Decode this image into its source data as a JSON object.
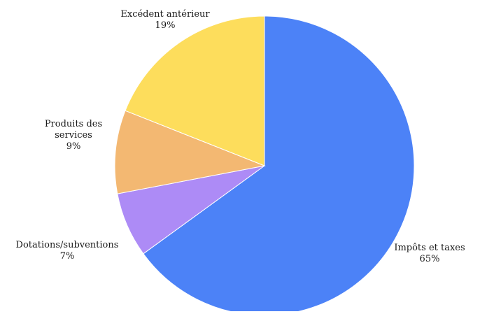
{
  "chart_data": {
    "type": "pie",
    "title": "",
    "slices": [
      {
        "label": "Impôts et taxes",
        "value": 65,
        "display": "65%",
        "color": "#4C82F7"
      },
      {
        "label": "Dotations/subventions",
        "value": 7,
        "display": "7%",
        "color": "#AD8BF6"
      },
      {
        "label": "Produits des services",
        "value": 9,
        "display": "9%",
        "color": "#F3B872"
      },
      {
        "label": "Excédent antérieur",
        "value": 19,
        "display": "19%",
        "color": "#FDDD5C"
      }
    ],
    "start": "top",
    "direction": "clockwise"
  }
}
